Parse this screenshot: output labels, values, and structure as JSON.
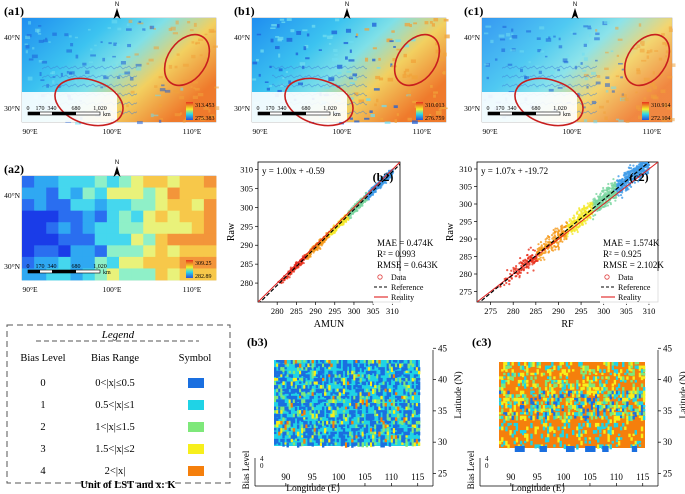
{
  "palette": {
    "b0": "#1a6fe0",
    "b1": "#1fd3e6",
    "b2": "#7ee87a",
    "b3": "#f7ef1c",
    "b4": "#f57f0c",
    "ref": "#000000",
    "reality": "#e02020",
    "data_marker": "#e04040",
    "circle": "#c81e1e"
  },
  "map_panels": [
    {
      "label": "(a1)",
      "max": "313.453",
      "min": "275.383"
    },
    {
      "label": "(b1)",
      "max": "310.013",
      "min": "276.759"
    },
    {
      "label": "(c1)",
      "max": "310.914",
      "min": "272.104"
    },
    {
      "label": "(a2)",
      "max": "309.25",
      "min": "282.89"
    }
  ],
  "map_common": {
    "lat_top": "40°N",
    "lat_bot": "30°N",
    "lon_90": "90°E",
    "lon_100": "100°E",
    "lon_110": "110°E",
    "scale_ticks": [
      "0",
      "170",
      "340",
      "680",
      "1,020"
    ],
    "scale_unit": "km",
    "north": "N"
  },
  "chart_data": [
    {
      "type": "scatter",
      "panel": "(b2)",
      "equation": "y = 1.00x + -0.59",
      "xlabel": "AMUN",
      "ylabel": "Raw",
      "xlim": [
        275,
        312
      ],
      "ylim": [
        275,
        312
      ],
      "xticks": [
        280,
        285,
        290,
        295,
        300,
        305,
        310
      ],
      "yticks": [
        280,
        285,
        290,
        295,
        300,
        305,
        310
      ],
      "slope": 1.0,
      "intercept": -0.59,
      "stats": [
        "MAE = 0.474K",
        "R² = 0.993",
        "RMSE = 0.643K"
      ],
      "legend": [
        "Data",
        "Reference",
        "Reality"
      ],
      "legend_position": "bottom-right"
    },
    {
      "type": "scatter",
      "panel": "(c2)",
      "equation": "y = 1.07x + -19.72",
      "xlabel": "RF",
      "ylabel": "Raw",
      "xlim": [
        272,
        312
      ],
      "ylim": [
        272,
        312
      ],
      "xticks": [
        275,
        280,
        285,
        290,
        295,
        300,
        305,
        310
      ],
      "yticks": [
        275,
        280,
        285,
        290,
        295,
        300,
        305,
        310
      ],
      "slope": 1.07,
      "intercept": -19.72,
      "stats": [
        "MAE = 1.574K",
        "R² = 0.925",
        "RMSE = 2.102K"
      ],
      "legend": [
        "Data",
        "Reference",
        "Reality"
      ],
      "legend_position": "bottom-right"
    },
    {
      "type": "area",
      "panel": "(b3)",
      "xlabel": "Longitude (E)",
      "ylabel": "Latitude (N)",
      "zlabel": "Bias Level",
      "xticks": [
        90,
        95,
        100,
        105,
        110,
        115
      ],
      "yticks": [
        25,
        30,
        35,
        40,
        45
      ],
      "zticks": [
        "0",
        "4"
      ]
    },
    {
      "type": "area",
      "panel": "(c3)",
      "xlabel": "Longitude (E)",
      "ylabel": "Latitude (N)",
      "zlabel": "Bias Level",
      "xticks": [
        90,
        95,
        100,
        105,
        110,
        115
      ],
      "yticks": [
        25,
        30,
        35,
        40,
        45
      ],
      "zticks": [
        "0",
        "4"
      ]
    }
  ],
  "legend_box": {
    "title": "Legend",
    "headers": [
      "Bias Level",
      "Bias Range",
      "Symbol"
    ],
    "rows": [
      {
        "level": "0",
        "range": "0<|x|≤0.5",
        "color": "#1a6fe0"
      },
      {
        "level": "1",
        "range": "0.5<|x|≤1",
        "color": "#1fd3e6"
      },
      {
        "level": "2",
        "range": "1<|x|≤1.5",
        "color": "#7ee87a"
      },
      {
        "level": "3",
        "range": "1.5<|x|≤2",
        "color": "#f7ef1c"
      },
      {
        "level": "4",
        "range": "2<|x|",
        "color": "#f57f0c"
      }
    ],
    "footer": "Unit of LST and x: K"
  }
}
